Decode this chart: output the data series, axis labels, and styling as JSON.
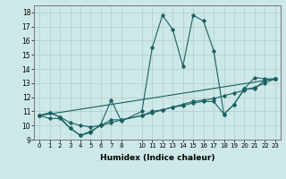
{
  "xlabel": "Humidex (Indice chaleur)",
  "background_color": "#cde8e8",
  "grid_color": "#b8d0d0",
  "line_color": "#1a6060",
  "xlim": [
    -0.5,
    23.5
  ],
  "ylim": [
    9,
    18.5
  ],
  "yticks": [
    9,
    10,
    11,
    12,
    13,
    14,
    15,
    16,
    17,
    18
  ],
  "xtick_positions": [
    0,
    1,
    2,
    3,
    4,
    5,
    6,
    7,
    8,
    10,
    11,
    12,
    13,
    14,
    15,
    16,
    17,
    18,
    19,
    20,
    21,
    22,
    23
  ],
  "lines": [
    {
      "x": [
        0,
        1,
        2,
        3,
        4,
        5,
        6,
        7,
        8,
        10,
        11,
        12,
        13,
        14,
        15,
        16,
        17,
        18,
        19,
        20,
        21,
        22,
        23
      ],
      "y": [
        10.7,
        10.9,
        10.6,
        9.8,
        9.3,
        9.5,
        10.1,
        11.8,
        10.3,
        11.0,
        15.5,
        17.8,
        16.8,
        14.2,
        17.8,
        17.4,
        15.3,
        10.8,
        11.5,
        12.6,
        13.4,
        13.3,
        13.3
      ]
    },
    {
      "x": [
        0,
        1,
        2,
        3,
        4,
        5,
        6,
        7,
        8,
        10,
        11,
        12,
        13,
        14,
        15,
        16,
        17,
        18,
        19,
        20,
        21,
        22,
        23
      ],
      "y": [
        10.7,
        10.5,
        10.5,
        9.8,
        9.3,
        9.6,
        10.0,
        10.4,
        10.4,
        10.7,
        11.0,
        11.1,
        11.3,
        11.4,
        11.6,
        11.7,
        11.7,
        10.8,
        11.5,
        12.6,
        12.6,
        13.2,
        13.3
      ]
    },
    {
      "x": [
        0,
        23
      ],
      "y": [
        10.7,
        13.3
      ]
    },
    {
      "x": [
        0,
        1,
        2,
        3,
        4,
        5,
        6,
        7,
        8,
        10,
        11,
        12,
        13,
        14,
        15,
        16,
        17,
        18,
        19,
        20,
        21,
        22,
        23
      ],
      "y": [
        10.7,
        10.9,
        10.6,
        10.2,
        10.0,
        9.9,
        10.0,
        10.2,
        10.4,
        10.7,
        10.9,
        11.1,
        11.3,
        11.5,
        11.7,
        11.8,
        11.9,
        12.1,
        12.3,
        12.5,
        12.7,
        13.0,
        13.3
      ]
    }
  ]
}
